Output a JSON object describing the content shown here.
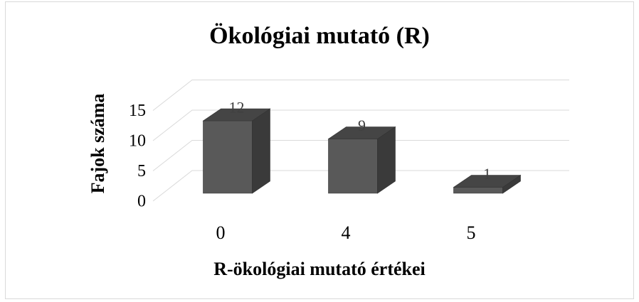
{
  "chart_data": {
    "type": "bar3d",
    "title": "Ökológiai mutató (R)",
    "x_label": "R-ökológiai mutató értékei",
    "y_label": "Fajok száma",
    "categories": [
      "0",
      "4",
      "5"
    ],
    "values": [
      12,
      9,
      1
    ],
    "color": "#595959",
    "ylim": [
      0,
      15
    ],
    "yticks": [
      0,
      5,
      10,
      15
    ],
    "grid": true
  }
}
